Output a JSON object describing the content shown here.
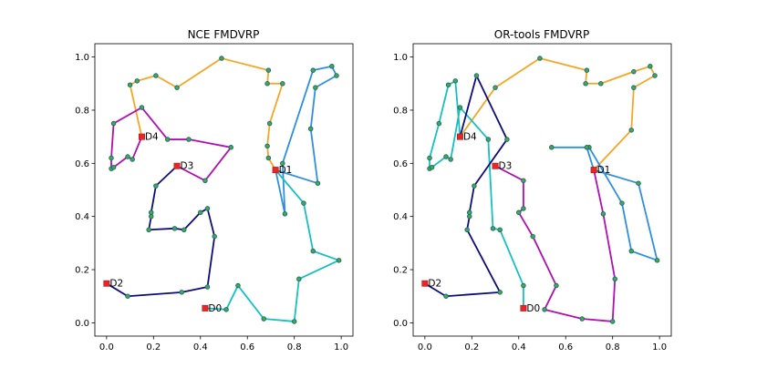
{
  "chart_data": [
    {
      "type": "line",
      "title": "NCE FMDVRP",
      "xlim": [
        -0.05,
        1.05
      ],
      "ylim": [
        -0.05,
        1.05
      ],
      "xticks": [
        "0.0",
        "0.2",
        "0.4",
        "0.6",
        "0.8",
        "1.0"
      ],
      "yticks": [
        "0.0",
        "0.2",
        "0.4",
        "0.6",
        "0.8",
        "1.0"
      ],
      "depots": [
        {
          "name": "D0",
          "x": 0.42,
          "y": 0.055
        },
        {
          "name": "D1",
          "x": 0.72,
          "y": 0.575
        },
        {
          "name": "D2",
          "x": 0.0,
          "y": 0.148
        },
        {
          "name": "D3",
          "x": 0.3,
          "y": 0.59
        },
        {
          "name": "D4",
          "x": 0.15,
          "y": 0.7
        }
      ],
      "routes": [
        {
          "color": "#f5a623",
          "points": [
            [
              0.72,
              0.575
            ],
            [
              0.69,
              0.62
            ],
            [
              0.685,
              0.665
            ],
            [
              0.695,
              0.75
            ],
            [
              0.75,
              0.9
            ],
            [
              0.685,
              0.9
            ],
            [
              0.69,
              0.95
            ],
            [
              0.49,
              0.995
            ],
            [
              0.3,
              0.885
            ],
            [
              0.21,
              0.93
            ],
            [
              0.13,
              0.91
            ],
            [
              0.1,
              0.895
            ],
            [
              0.15,
              0.7
            ]
          ]
        },
        {
          "color": "#2e8fe0",
          "points": [
            [
              0.72,
              0.575
            ],
            [
              0.9,
              0.525
            ],
            [
              0.87,
              0.73
            ],
            [
              0.89,
              0.885
            ],
            [
              0.98,
              0.93
            ],
            [
              0.96,
              0.965
            ],
            [
              0.88,
              0.95
            ],
            [
              0.75,
              0.6
            ],
            [
              0.76,
              0.41
            ],
            [
              0.72,
              0.575
            ]
          ]
        },
        {
          "color": "#16c0c0",
          "points": [
            [
              0.72,
              0.575
            ],
            [
              0.84,
              0.45
            ],
            [
              0.88,
              0.27
            ],
            [
              0.99,
              0.235
            ],
            [
              0.82,
              0.165
            ],
            [
              0.8,
              0.005
            ],
            [
              0.67,
              0.015
            ],
            [
              0.56,
              0.14
            ],
            [
              0.51,
              0.05
            ],
            [
              0.42,
              0.055
            ]
          ]
        },
        {
          "color": "#0d0d7a",
          "points": [
            [
              0.0,
              0.148
            ],
            [
              0.09,
              0.1
            ],
            [
              0.32,
              0.115
            ],
            [
              0.43,
              0.135
            ],
            [
              0.46,
              0.325
            ],
            [
              0.43,
              0.43
            ],
            [
              0.4,
              0.415
            ],
            [
              0.33,
              0.35
            ],
            [
              0.29,
              0.355
            ],
            [
              0.18,
              0.35
            ],
            [
              0.19,
              0.4
            ],
            [
              0.19,
              0.415
            ],
            [
              0.21,
              0.515
            ],
            [
              0.3,
              0.59
            ]
          ]
        },
        {
          "color": "#b010b0",
          "points": [
            [
              0.3,
              0.59
            ],
            [
              0.42,
              0.535
            ],
            [
              0.53,
              0.66
            ],
            [
              0.35,
              0.69
            ],
            [
              0.26,
              0.69
            ],
            [
              0.15,
              0.81
            ],
            [
              0.03,
              0.75
            ],
            [
              0.02,
              0.62
            ],
            [
              0.02,
              0.58
            ],
            [
              0.03,
              0.585
            ],
            [
              0.09,
              0.625
            ],
            [
              0.11,
              0.615
            ],
            [
              0.15,
              0.7
            ]
          ]
        }
      ]
    },
    {
      "type": "line",
      "title": "OR-tools FMDVRP",
      "xlim": [
        -0.05,
        1.05
      ],
      "ylim": [
        -0.05,
        1.05
      ],
      "xticks": [
        "0.0",
        "0.2",
        "0.4",
        "0.6",
        "0.8",
        "1.0"
      ],
      "yticks": [
        "0.0",
        "0.2",
        "0.4",
        "0.6",
        "0.8",
        "1.0"
      ],
      "depots": [
        {
          "name": "D0",
          "x": 0.42,
          "y": 0.055
        },
        {
          "name": "D1",
          "x": 0.72,
          "y": 0.575
        },
        {
          "name": "D2",
          "x": 0.0,
          "y": 0.148
        },
        {
          "name": "D3",
          "x": 0.3,
          "y": 0.59
        },
        {
          "name": "D4",
          "x": 0.15,
          "y": 0.7
        }
      ],
      "routes": [
        {
          "color": "#f5a623",
          "points": [
            [
              0.15,
              0.7
            ],
            [
              0.3,
              0.885
            ],
            [
              0.49,
              0.995
            ],
            [
              0.69,
              0.95
            ],
            [
              0.685,
              0.9
            ],
            [
              0.75,
              0.9
            ],
            [
              0.89,
              0.945
            ],
            [
              0.96,
              0.965
            ],
            [
              0.98,
              0.93
            ],
            [
              0.89,
              0.885
            ],
            [
              0.88,
              0.725
            ],
            [
              0.72,
              0.575
            ]
          ]
        },
        {
          "color": "#2e8fe0",
          "points": [
            [
              0.72,
              0.575
            ],
            [
              0.91,
              0.525
            ],
            [
              0.99,
              0.235
            ],
            [
              0.88,
              0.27
            ],
            [
              0.84,
              0.45
            ],
            [
              0.7,
              0.66
            ],
            [
              0.54,
              0.66
            ],
            [
              0.69,
              0.66
            ],
            [
              0.72,
              0.575
            ]
          ]
        },
        {
          "color": "#16c0c0",
          "points": [
            [
              0.15,
              0.7
            ],
            [
              0.13,
              0.91
            ],
            [
              0.1,
              0.895
            ],
            [
              0.06,
              0.75
            ],
            [
              0.02,
              0.62
            ],
            [
              0.02,
              0.58
            ],
            [
              0.03,
              0.585
            ],
            [
              0.09,
              0.625
            ],
            [
              0.11,
              0.615
            ],
            [
              0.15,
              0.81
            ],
            [
              0.27,
              0.69
            ],
            [
              0.29,
              0.355
            ],
            [
              0.32,
              0.35
            ],
            [
              0.42,
              0.14
            ],
            [
              0.42,
              0.055
            ]
          ]
        },
        {
          "color": "#0d0d7a",
          "points": [
            [
              0.0,
              0.148
            ],
            [
              0.09,
              0.1
            ],
            [
              0.32,
              0.115
            ],
            [
              0.18,
              0.35
            ],
            [
              0.19,
              0.4
            ],
            [
              0.19,
              0.415
            ],
            [
              0.21,
              0.515
            ],
            [
              0.35,
              0.69
            ],
            [
              0.22,
              0.93
            ],
            [
              0.15,
              0.7
            ]
          ]
        },
        {
          "color": "#b010b0",
          "points": [
            [
              0.3,
              0.59
            ],
            [
              0.42,
              0.535
            ],
            [
              0.42,
              0.43
            ],
            [
              0.4,
              0.415
            ],
            [
              0.46,
              0.325
            ],
            [
              0.56,
              0.14
            ],
            [
              0.51,
              0.05
            ],
            [
              0.67,
              0.015
            ],
            [
              0.8,
              0.005
            ],
            [
              0.81,
              0.165
            ],
            [
              0.76,
              0.41
            ],
            [
              0.72,
              0.575
            ]
          ]
        }
      ]
    }
  ]
}
